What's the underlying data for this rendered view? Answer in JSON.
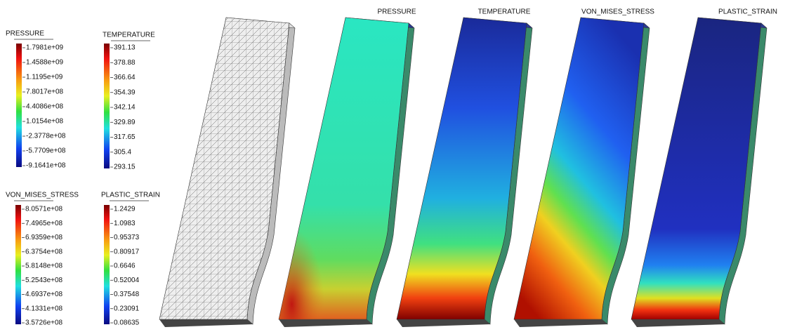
{
  "legends": [
    {
      "title": "PRESSURE",
      "labels": [
        "1.7981e+09",
        "1.4588e+09",
        "1.1195e+09",
        "7.8017e+08",
        "4.4086e+08",
        "1.0154e+08",
        "-2.3778e+08",
        "-5.7709e+08",
        "-9.1641e+08"
      ]
    },
    {
      "title": "TEMPERATURE",
      "labels": [
        "391.13",
        "378.88",
        "366.64",
        "354.39",
        "342.14",
        "329.89",
        "317.65",
        "305.4",
        "293.15"
      ]
    },
    {
      "title": "VON_MISES_STRESS",
      "labels": [
        "8.0571e+08",
        "7.4965e+08",
        "6.9359e+08",
        "6.3754e+08",
        "5.8148e+08",
        "5.2543e+08",
        "4.6937e+08",
        "4.1331e+08",
        "3.5726e+08"
      ]
    },
    {
      "title": "PLASTIC_STRAIN",
      "labels": [
        "1.2429",
        "1.0983",
        "0.95373",
        "0.80917",
        "0.6646",
        "0.52004",
        "0.37548",
        "0.23091",
        "0.08635"
      ]
    }
  ],
  "views": [
    "PRESSURE",
    "TEMPERATURE",
    "VON_MISES_STRESS",
    "PLASTIC_STRAIN"
  ]
}
